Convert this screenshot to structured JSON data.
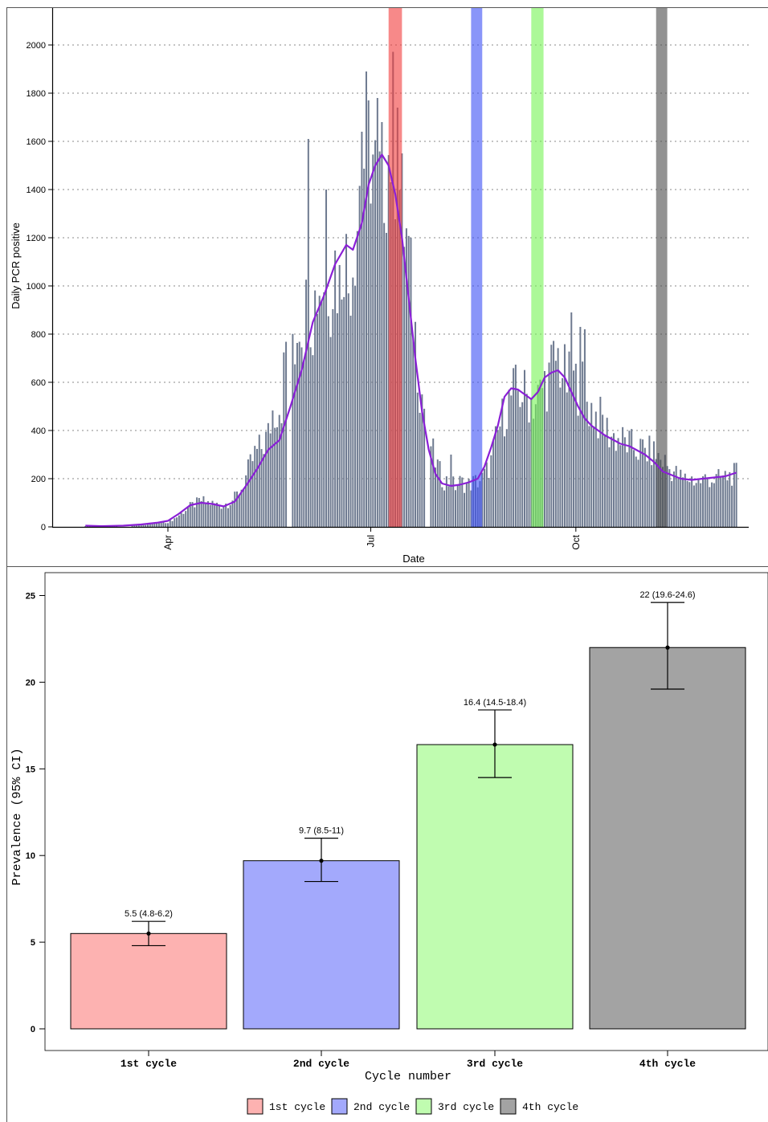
{
  "chart_data": [
    {
      "type": "bar",
      "xlabel": "Date",
      "ylabel": "Daily PCR positive",
      "ylim": [
        0,
        2150
      ],
      "y_ticks": [
        0,
        200,
        400,
        600,
        800,
        1000,
        1200,
        1400,
        1600,
        1800,
        2000
      ],
      "x_ticks": [
        {
          "label": "Apr",
          "day": 0
        },
        {
          "label": "Jul",
          "day": 91
        },
        {
          "label": "Oct",
          "day": 183
        }
      ],
      "grid": "horizontal dotted",
      "bar_color": "#6e7a90",
      "smooth_color": "#8a1fd6",
      "anchor_points": [
        [
          -37,
          4
        ],
        [
          -30,
          3
        ],
        [
          -20,
          5
        ],
        [
          -15,
          7
        ],
        [
          -10,
          10
        ],
        [
          -5,
          15
        ],
        [
          0,
          20
        ],
        [
          3,
          35
        ],
        [
          6,
          55
        ],
        [
          9,
          80
        ],
        [
          12,
          95
        ],
        [
          15,
          110
        ],
        [
          18,
          100
        ],
        [
          21,
          95
        ],
        [
          24,
          90
        ],
        [
          27,
          100
        ],
        [
          30,
          120
        ],
        [
          33,
          160
        ],
        [
          36,
          230
        ],
        [
          39,
          300
        ],
        [
          42,
          330
        ],
        [
          45,
          380
        ],
        [
          47,
          480
        ],
        [
          49,
          500
        ],
        [
          51,
          520
        ],
        [
          53,
          750
        ],
        [
          55,
          850
        ],
        [
          57,
          770
        ],
        [
          59,
          900
        ],
        [
          61,
          850
        ],
        [
          63,
          950
        ],
        [
          65,
          880
        ],
        [
          67,
          1000
        ],
        [
          69,
          1020
        ],
        [
          71,
          1050
        ],
        [
          73,
          1000
        ],
        [
          75,
          1100
        ],
        [
          77,
          1000
        ],
        [
          79,
          1200
        ],
        [
          81,
          1000
        ],
        [
          83,
          1150
        ],
        [
          85,
          1300
        ],
        [
          87,
          1550
        ],
        [
          89,
          1500
        ],
        [
          91,
          1600
        ],
        [
          93,
          1450
        ],
        [
          95,
          1400
        ],
        [
          97,
          1500
        ],
        [
          99,
          1550
        ],
        [
          101,
          1650
        ],
        [
          103,
          1500
        ],
        [
          105,
          1300
        ],
        [
          107,
          1200
        ],
        [
          109,
          1000
        ],
        [
          111,
          800
        ],
        [
          113,
          600
        ],
        [
          115,
          500
        ],
        [
          117,
          400
        ],
        [
          119,
          300
        ],
        [
          121,
          250
        ],
        [
          123,
          200
        ],
        [
          125,
          190
        ],
        [
          127,
          180
        ],
        [
          129,
          170
        ],
        [
          131,
          185
        ],
        [
          133,
          180
        ],
        [
          135,
          175
        ],
        [
          137,
          185
        ],
        [
          139,
          190
        ],
        [
          141,
          200
        ],
        [
          143,
          230
        ],
        [
          145,
          270
        ],
        [
          147,
          350
        ],
        [
          149,
          420
        ],
        [
          151,
          480
        ],
        [
          153,
          520
        ],
        [
          155,
          560
        ],
        [
          157,
          560
        ],
        [
          159,
          560
        ],
        [
          161,
          540
        ],
        [
          163,
          530
        ],
        [
          165,
          520
        ],
        [
          167,
          550
        ],
        [
          169,
          600
        ],
        [
          171,
          620
        ],
        [
          173,
          680
        ],
        [
          175,
          700
        ],
        [
          177,
          650
        ],
        [
          179,
          600
        ],
        [
          181,
          600
        ],
        [
          183,
          590
        ],
        [
          185,
          600
        ],
        [
          187,
          560
        ],
        [
          189,
          500
        ],
        [
          191,
          480
        ],
        [
          193,
          450
        ],
        [
          195,
          440
        ],
        [
          197,
          400
        ],
        [
          199,
          380
        ],
        [
          201,
          370
        ],
        [
          203,
          360
        ],
        [
          205,
          350
        ],
        [
          207,
          340
        ],
        [
          209,
          330
        ],
        [
          211,
          320
        ],
        [
          213,
          320
        ],
        [
          215,
          310
        ],
        [
          217,
          310
        ],
        [
          219,
          300
        ],
        [
          221,
          280
        ],
        [
          223,
          270
        ],
        [
          225,
          240
        ],
        [
          227,
          230
        ],
        [
          229,
          210
        ],
        [
          231,
          200
        ],
        [
          233,
          200
        ],
        [
          235,
          200
        ],
        [
          237,
          190
        ],
        [
          239,
          190
        ],
        [
          241,
          200
        ],
        [
          243,
          200
        ],
        [
          245,
          195
        ],
        [
          247,
          200
        ],
        [
          249,
          205
        ],
        [
          251,
          210
        ],
        [
          253,
          215
        ],
        [
          255,
          220
        ]
      ],
      "gaps": [
        [
          -32,
          -27
        ],
        [
          -22,
          -17
        ],
        [
          53.5,
          55
        ],
        [
          115.5,
          117
        ]
      ],
      "spikes": [
        [
          63,
          1610
        ],
        [
          87,
          1640
        ],
        [
          89,
          1890
        ],
        [
          94,
          1780
        ],
        [
          96,
          1680
        ],
        [
          103,
          1740
        ],
        [
          71,
          1400
        ],
        [
          105,
          1550
        ],
        [
          127,
          300
        ],
        [
          181,
          890
        ],
        [
          185,
          830
        ],
        [
          187,
          820
        ]
      ],
      "smooth_line": [
        [
          -37,
          5
        ],
        [
          -30,
          3
        ],
        [
          -20,
          5
        ],
        [
          -12,
          10
        ],
        [
          -5,
          17
        ],
        [
          0,
          25
        ],
        [
          5,
          55
        ],
        [
          10,
          90
        ],
        [
          15,
          100
        ],
        [
          20,
          95
        ],
        [
          25,
          85
        ],
        [
          30,
          105
        ],
        [
          35,
          170
        ],
        [
          40,
          240
        ],
        [
          45,
          320
        ],
        [
          50,
          360
        ],
        [
          55,
          500
        ],
        [
          60,
          650
        ],
        [
          65,
          850
        ],
        [
          70,
          960
        ],
        [
          75,
          1090
        ],
        [
          80,
          1170
        ],
        [
          83,
          1150
        ],
        [
          87,
          1260
        ],
        [
          90,
          1420
        ],
        [
          93,
          1500
        ],
        [
          96,
          1545
        ],
        [
          99,
          1500
        ],
        [
          102,
          1380
        ],
        [
          105,
          1200
        ],
        [
          108,
          950
        ],
        [
          111,
          700
        ],
        [
          114,
          480
        ],
        [
          117,
          320
        ],
        [
          120,
          220
        ],
        [
          123,
          180
        ],
        [
          127,
          170
        ],
        [
          131,
          175
        ],
        [
          135,
          185
        ],
        [
          139,
          200
        ],
        [
          142,
          250
        ],
        [
          145,
          330
        ],
        [
          148,
          420
        ],
        [
          151,
          540
        ],
        [
          154,
          575
        ],
        [
          157,
          570
        ],
        [
          160,
          550
        ],
        [
          163,
          530
        ],
        [
          166,
          560
        ],
        [
          169,
          620
        ],
        [
          172,
          640
        ],
        [
          175,
          650
        ],
        [
          178,
          620
        ],
        [
          181,
          560
        ],
        [
          184,
          500
        ],
        [
          187,
          450
        ],
        [
          190,
          420
        ],
        [
          193,
          400
        ],
        [
          196,
          380
        ],
        [
          200,
          360
        ],
        [
          203,
          345
        ],
        [
          207,
          335
        ],
        [
          210,
          320
        ],
        [
          214,
          300
        ],
        [
          218,
          270
        ],
        [
          222,
          230
        ],
        [
          226,
          215
        ],
        [
          230,
          200
        ],
        [
          235,
          195
        ],
        [
          240,
          200
        ],
        [
          245,
          205
        ],
        [
          250,
          210
        ],
        [
          255,
          225
        ]
      ],
      "highlight_bands": [
        {
          "name": "1st cycle",
          "from": 99,
          "to": 105,
          "color": "#f23a3a"
        },
        {
          "name": "2nd cycle",
          "from": 136,
          "to": 141,
          "color": "#3a4ef5"
        },
        {
          "name": "3rd cycle",
          "from": 163,
          "to": 168.5,
          "color": "#74f454"
        },
        {
          "name": "4th cycle",
          "from": 219,
          "to": 224,
          "color": "#4a4a4a"
        }
      ]
    },
    {
      "type": "bar",
      "xlabel": "Cycle number",
      "ylabel": "Prevalence (95% CI)",
      "ylim": [
        0,
        26
      ],
      "y_ticks": [
        0,
        5,
        10,
        15,
        20,
        25
      ],
      "categories": [
        "1st cycle",
        "2nd cycle",
        "3rd cycle",
        "4th cycle"
      ],
      "values": [
        5.5,
        9.7,
        16.4,
        22
      ],
      "ci_low": [
        4.8,
        8.5,
        14.5,
        19.6
      ],
      "ci_high": [
        6.2,
        11,
        18.4,
        24.6
      ],
      "data_labels": [
        "5.5 (4.8-6.2)",
        "9.7 (8.5-11)",
        "16.4 (14.5-18.4)",
        "22 (19.6-24.6)"
      ],
      "colors": [
        "#fdb2b1",
        "#a3a9fc",
        "#c0fcb0",
        "#a3a3a3"
      ],
      "legend": {
        "placement": "bottom",
        "entries": [
          "1st cycle",
          "2nd cycle",
          "3rd cycle",
          "4th cycle"
        ]
      }
    }
  ]
}
